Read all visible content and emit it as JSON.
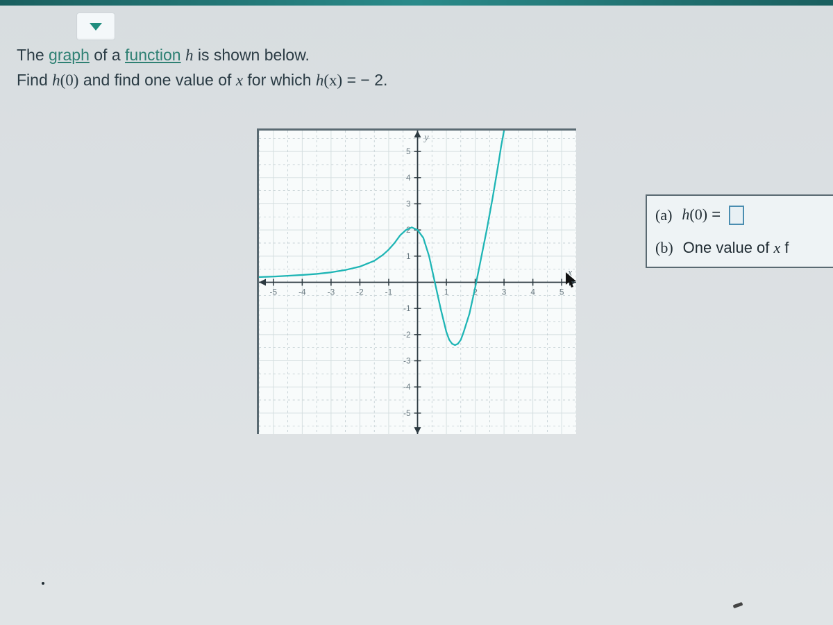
{
  "prompt": {
    "line1_pre": "The ",
    "link1": "graph",
    "line1_mid": " of a ",
    "link2": "function",
    "line1_post_a": " ",
    "func_h": "h",
    "line1_post_b": " is shown below.",
    "line2_pre": "Find ",
    "expr1_h": "h",
    "expr1_arg": "(0)",
    "line2_mid": " and find one value of ",
    "var_x": "x",
    "line2_mid2": " for which ",
    "expr2_h": "h",
    "expr2_arg": "(x)",
    "expr2_eq": " = − 2."
  },
  "graph": {
    "xlim": [
      -5.5,
      5.5
    ],
    "ylim": [
      -5.8,
      5.8
    ],
    "xticks": [
      -5,
      -4,
      -3,
      -2,
      -1,
      1,
      2,
      3,
      4,
      5
    ],
    "yticks": [
      -5,
      -4,
      -3,
      -2,
      -1,
      1,
      2,
      3,
      4,
      5
    ],
    "xlabel": "x",
    "ylabel": "y",
    "curve_color": "#1eb5b5",
    "curve_width": 2.3,
    "grid_color": "#d4dee0",
    "dash_color": "#b5c3c8",
    "axis_color": "#2d3a41",
    "tick_label_color": "#6a7a82",
    "tick_fontsize": 12,
    "axis_label_fontsize": 14,
    "curve_points_xy": [
      [
        -5.5,
        0.2
      ],
      [
        -5,
        0.22
      ],
      [
        -4.5,
        0.25
      ],
      [
        -4,
        0.28
      ],
      [
        -3.5,
        0.32
      ],
      [
        -3,
        0.38
      ],
      [
        -2.5,
        0.47
      ],
      [
        -2,
        0.6
      ],
      [
        -1.5,
        0.82
      ],
      [
        -1.2,
        1.05
      ],
      [
        -1,
        1.25
      ],
      [
        -0.8,
        1.5
      ],
      [
        -0.6,
        1.8
      ],
      [
        -0.4,
        2.0
      ],
      [
        -0.2,
        2.1
      ],
      [
        0,
        2.0
      ],
      [
        0.2,
        1.7
      ],
      [
        0.4,
        1.0
      ],
      [
        0.6,
        0.0
      ],
      [
        0.8,
        -1.0
      ],
      [
        1.0,
        -1.9
      ],
      [
        1.1,
        -2.2
      ],
      [
        1.2,
        -2.35
      ],
      [
        1.3,
        -2.4
      ],
      [
        1.4,
        -2.35
      ],
      [
        1.5,
        -2.2
      ],
      [
        1.6,
        -1.9
      ],
      [
        1.8,
        -1.2
      ],
      [
        2.0,
        -0.2
      ],
      [
        2.2,
        0.9
      ],
      [
        2.4,
        2.0
      ],
      [
        2.6,
        3.2
      ],
      [
        2.8,
        4.5
      ],
      [
        2.9,
        5.2
      ],
      [
        3.0,
        5.8
      ]
    ]
  },
  "answers": {
    "a_label": "(a)",
    "a_expr_h": "h",
    "a_expr_arg": "(0)",
    "a_expr_eq": " = ",
    "b_label": "(b)",
    "b_text": "One value of ",
    "b_var": "x",
    "b_text2": " f"
  },
  "colors": {
    "page_bg": "#e0e4e6",
    "border_dark": "#5a6a72",
    "link": "#2e8073",
    "text": "#2a3b44"
  }
}
